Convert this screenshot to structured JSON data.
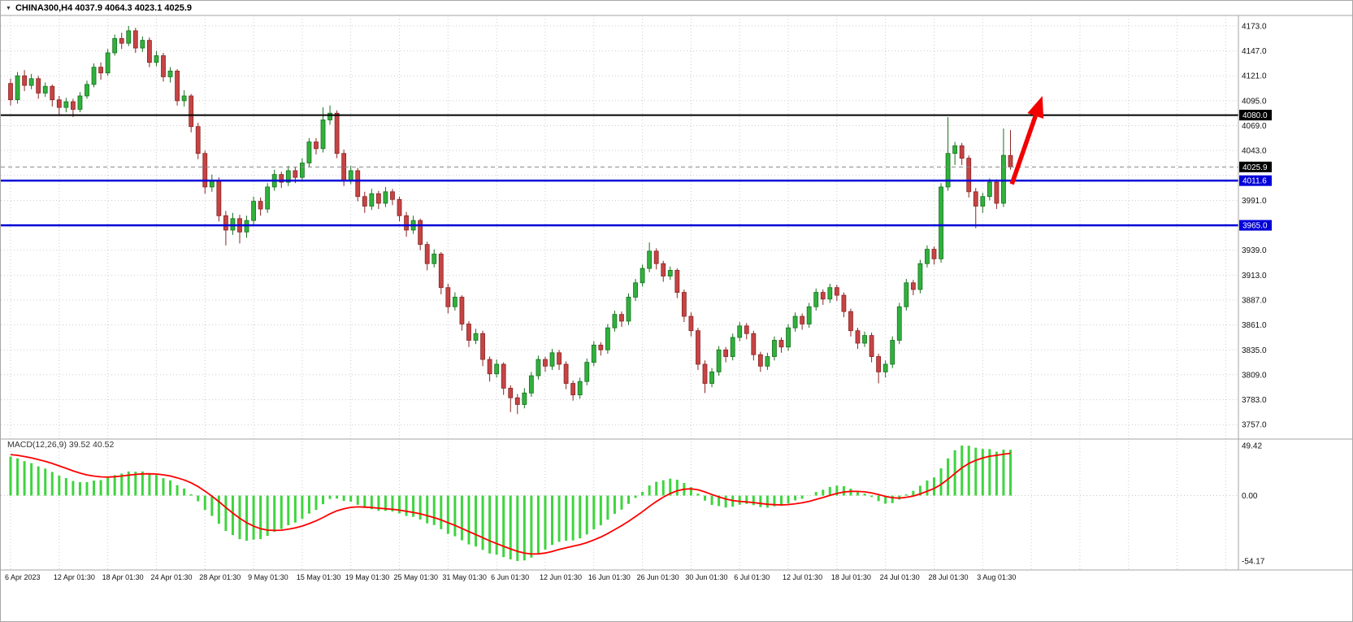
{
  "window": {
    "symbol_header": "CHINA300,H4  4037.9 4064.3 4023.1 4025.9",
    "dropdown_icon": "▼"
  },
  "colors": {
    "background": "#ffffff",
    "grid": "#cdcdcd",
    "bull": "#30b13c",
    "bull_border": "#17701f",
    "bear": "#c64444",
    "bear_border": "#8a2424",
    "macd_histogram": "#3fd43f",
    "macd_signal": "#ff0000"
  },
  "chart_data": {
    "type": "candlestick",
    "symbol": "CHINA300",
    "timeframe": "H4",
    "current_bar": {
      "open": 4037.9,
      "high": 4064.3,
      "low": 4023.1,
      "close": 4025.9
    },
    "price_axis": {
      "range": [
        3747,
        4184
      ],
      "gridline_values": [
        4173,
        4147,
        4121,
        4095,
        4069,
        4043,
        4017,
        3991,
        3965,
        3939,
        3913,
        3887,
        3861,
        3835,
        3809,
        3783,
        3757
      ],
      "labels": [
        "4173.0",
        "4147.0",
        "4121.0",
        "4095.0",
        "4069.0",
        "4043.0",
        "3991.0",
        "3939.0",
        "3913.0",
        "3887.0",
        "3861.0",
        "3835.0",
        "3809.0",
        "3783.0",
        "3757.0"
      ]
    },
    "time_axis": {
      "labels": [
        "6 Apr 2023",
        "12 Apr 01:30",
        "18 Apr 01:30",
        "24 Apr 01:30",
        "28 Apr 01:30",
        "9 May 01:30",
        "15 May 01:30",
        "19 May 01:30",
        "25 May 01:30",
        "31 May 01:30",
        "6 Jun 01:30",
        "12 Jun 01:30",
        "16 Jun 01:30",
        "26 Jun 01:30",
        "30 Jun 01:30",
        "6 Jul 01:30",
        "12 Jul 01:30",
        "18 Jul 01:30",
        "24 Jul 01:30",
        "28 Jul 01:30",
        "3 Aug 01:30"
      ]
    },
    "candles": [
      [
        4113,
        4118,
        4090,
        4096
      ],
      [
        4096,
        4125,
        4092,
        4121
      ],
      [
        4121,
        4127,
        4105,
        4111
      ],
      [
        4111,
        4123,
        4107,
        4118
      ],
      [
        4118,
        4121,
        4097,
        4103
      ],
      [
        4103,
        4114,
        4099,
        4110
      ],
      [
        4110,
        4112,
        4089,
        4096
      ],
      [
        4096,
        4100,
        4080,
        4088
      ],
      [
        4088,
        4098,
        4083,
        4094
      ],
      [
        4094,
        4097,
        4078,
        4086
      ],
      [
        4086,
        4104,
        4083,
        4100
      ],
      [
        4100,
        4116,
        4097,
        4112
      ],
      [
        4112,
        4134,
        4109,
        4130
      ],
      [
        4130,
        4135,
        4117,
        4124
      ],
      [
        4124,
        4149,
        4121,
        4145
      ],
      [
        4145,
        4164,
        4142,
        4160
      ],
      [
        4160,
        4166,
        4149,
        4155
      ],
      [
        4155,
        4173,
        4152,
        4168
      ],
      [
        4168,
        4171,
        4145,
        4150
      ],
      [
        4150,
        4162,
        4146,
        4158
      ],
      [
        4158,
        4161,
        4130,
        4135
      ],
      [
        4135,
        4147,
        4131,
        4142
      ],
      [
        4142,
        4145,
        4115,
        4120
      ],
      [
        4120,
        4130,
        4114,
        4126
      ],
      [
        4126,
        4128,
        4090,
        4095
      ],
      [
        4095,
        4106,
        4089,
        4100
      ],
      [
        4100,
        4102,
        4062,
        4068
      ],
      [
        4068,
        4072,
        4034,
        4040
      ],
      [
        4040,
        4043,
        3998,
        4005
      ],
      [
        4005,
        4018,
        4000,
        4012
      ],
      [
        4012,
        4015,
        3969,
        3975
      ],
      [
        3975,
        3980,
        3944,
        3960
      ],
      [
        3960,
        3978,
        3955,
        3972
      ],
      [
        3972,
        3976,
        3946,
        3958
      ],
      [
        3958,
        3975,
        3952,
        3970
      ],
      [
        3970,
        3995,
        3966,
        3990
      ],
      [
        3990,
        3994,
        3975,
        3982
      ],
      [
        3982,
        4009,
        3978,
        4005
      ],
      [
        4005,
        4023,
        4001,
        4018
      ],
      [
        4018,
        4021,
        4004,
        4010
      ],
      [
        4010,
        4027,
        4006,
        4022
      ],
      [
        4022,
        4026,
        4009,
        4015
      ],
      [
        4015,
        4035,
        4011,
        4030
      ],
      [
        4030,
        4056,
        4026,
        4052
      ],
      [
        4052,
        4056,
        4039,
        4045
      ],
      [
        4045,
        4088,
        4041,
        4075
      ],
      [
        4075,
        4090,
        4070,
        4082
      ],
      [
        4082,
        4085,
        4035,
        4040
      ],
      [
        4040,
        4044,
        4006,
        4012
      ],
      [
        4012,
        4027,
        4008,
        4022
      ],
      [
        4022,
        4025,
        3990,
        3995
      ],
      [
        3995,
        4000,
        3978,
        3985
      ],
      [
        3985,
        4003,
        3981,
        3998
      ],
      [
        3998,
        4001,
        3982,
        3988
      ],
      [
        3988,
        4005,
        3984,
        4000
      ],
      [
        4000,
        4003,
        3986,
        3992
      ],
      [
        3992,
        3995,
        3969,
        3975
      ],
      [
        3975,
        3979,
        3953,
        3960
      ],
      [
        3960,
        3975,
        3956,
        3970
      ],
      [
        3970,
        3972,
        3939,
        3945
      ],
      [
        3945,
        3948,
        3918,
        3925
      ],
      [
        3925,
        3940,
        3921,
        3935
      ],
      [
        3935,
        3937,
        3893,
        3900
      ],
      [
        3900,
        3904,
        3873,
        3880
      ],
      [
        3880,
        3895,
        3876,
        3890
      ],
      [
        3890,
        3892,
        3855,
        3862
      ],
      [
        3862,
        3865,
        3838,
        3845
      ],
      [
        3845,
        3857,
        3841,
        3852
      ],
      [
        3852,
        3855,
        3818,
        3825
      ],
      [
        3825,
        3828,
        3802,
        3810
      ],
      [
        3810,
        3825,
        3806,
        3820
      ],
      [
        3820,
        3822,
        3788,
        3795
      ],
      [
        3795,
        3798,
        3770,
        3785
      ],
      [
        3785,
        3789,
        3768,
        3778
      ],
      [
        3778,
        3795,
        3774,
        3790
      ],
      [
        3790,
        3812,
        3786,
        3808
      ],
      [
        3808,
        3829,
        3804,
        3825
      ],
      [
        3825,
        3828,
        3812,
        3818
      ],
      [
        3818,
        3836,
        3814,
        3832
      ],
      [
        3832,
        3835,
        3814,
        3820
      ],
      [
        3820,
        3823,
        3794,
        3800
      ],
      [
        3800,
        3803,
        3782,
        3788
      ],
      [
        3788,
        3806,
        3784,
        3802
      ],
      [
        3802,
        3826,
        3798,
        3822
      ],
      [
        3822,
        3844,
        3818,
        3840
      ],
      [
        3840,
        3843,
        3829,
        3835
      ],
      [
        3835,
        3862,
        3831,
        3858
      ],
      [
        3858,
        3876,
        3854,
        3872
      ],
      [
        3872,
        3875,
        3859,
        3865
      ],
      [
        3865,
        3894,
        3861,
        3890
      ],
      [
        3890,
        3909,
        3886,
        3905
      ],
      [
        3905,
        3924,
        3901,
        3920
      ],
      [
        3920,
        3947,
        3916,
        3938
      ],
      [
        3938,
        3941,
        3919,
        3925
      ],
      [
        3925,
        3928,
        3906,
        3912
      ],
      [
        3912,
        3922,
        3908,
        3918
      ],
      [
        3918,
        3920,
        3889,
        3895
      ],
      [
        3895,
        3898,
        3864,
        3870
      ],
      [
        3870,
        3874,
        3849,
        3855
      ],
      [
        3855,
        3858,
        3814,
        3820
      ],
      [
        3820,
        3824,
        3790,
        3800
      ],
      [
        3800,
        3816,
        3796,
        3812
      ],
      [
        3812,
        3839,
        3808,
        3835
      ],
      [
        3835,
        3838,
        3822,
        3828
      ],
      [
        3828,
        3852,
        3824,
        3848
      ],
      [
        3848,
        3864,
        3844,
        3860
      ],
      [
        3860,
        3863,
        3846,
        3852
      ],
      [
        3852,
        3855,
        3824,
        3830
      ],
      [
        3830,
        3833,
        3812,
        3818
      ],
      [
        3818,
        3832,
        3814,
        3828
      ],
      [
        3828,
        3849,
        3824,
        3845
      ],
      [
        3845,
        3848,
        3832,
        3838
      ],
      [
        3838,
        3862,
        3834,
        3858
      ],
      [
        3858,
        3874,
        3854,
        3870
      ],
      [
        3870,
        3873,
        3856,
        3862
      ],
      [
        3862,
        3884,
        3858,
        3880
      ],
      [
        3880,
        3899,
        3876,
        3895
      ],
      [
        3895,
        3898,
        3882,
        3888
      ],
      [
        3888,
        3904,
        3884,
        3900
      ],
      [
        3900,
        3903,
        3886,
        3892
      ],
      [
        3892,
        3895,
        3869,
        3875
      ],
      [
        3875,
        3878,
        3849,
        3855
      ],
      [
        3855,
        3858,
        3836,
        3842
      ],
      [
        3842,
        3854,
        3838,
        3850
      ],
      [
        3850,
        3853,
        3822,
        3828
      ],
      [
        3828,
        3831,
        3800,
        3812
      ],
      [
        3812,
        3824,
        3806,
        3820
      ],
      [
        3820,
        3849,
        3816,
        3845
      ],
      [
        3845,
        3884,
        3841,
        3880
      ],
      [
        3880,
        3909,
        3876,
        3905
      ],
      [
        3905,
        3908,
        3892,
        3898
      ],
      [
        3898,
        3929,
        3894,
        3925
      ],
      [
        3925,
        3944,
        3921,
        3940
      ],
      [
        3940,
        3943,
        3924,
        3930
      ],
      [
        3930,
        4009,
        3926,
        4005
      ],
      [
        4005,
        4078,
        4001,
        4040
      ],
      [
        4040,
        4052,
        4028,
        4048
      ],
      [
        4048,
        4051,
        4028,
        4035
      ],
      [
        4035,
        4038,
        3994,
        4000
      ],
      [
        4000,
        4004,
        3962,
        3985
      ],
      [
        3985,
        3999,
        3978,
        3995
      ],
      [
        3995,
        4014,
        3991,
        4010
      ],
      [
        4010,
        4013,
        3982,
        3988
      ],
      [
        3988,
        4066,
        3984,
        4038
      ],
      [
        4037.9,
        4064.3,
        4023.1,
        4025.9
      ]
    ],
    "hlines": [
      {
        "price": 4080.0,
        "badge": "4080.0",
        "color": "#000000",
        "width": 2
      },
      {
        "price": 4011.6,
        "badge": "4011.6",
        "color": "#0000d8",
        "width": 2.5
      },
      {
        "price": 3965.0,
        "badge": "3965.0",
        "color": "#0000d8",
        "width": 2.5
      }
    ],
    "price_marker": {
      "price": 4025.9,
      "badge": "4025.9",
      "badge_bg": "#000000"
    },
    "arrow": {
      "from_bar": 144.2,
      "from_price": 4008,
      "to_bar": 148.6,
      "to_price": 4100,
      "color": "#f20000"
    },
    "macd": {
      "label": "MACD(12,26,9) 39.52 40.52",
      "fast": 12,
      "slow": 26,
      "signal": 9,
      "macd_value": 39.52,
      "signal_value": 40.52,
      "axis_labels": {
        "max": "49.42",
        "zero": "0.00",
        "min": "-54.17"
      }
    }
  }
}
